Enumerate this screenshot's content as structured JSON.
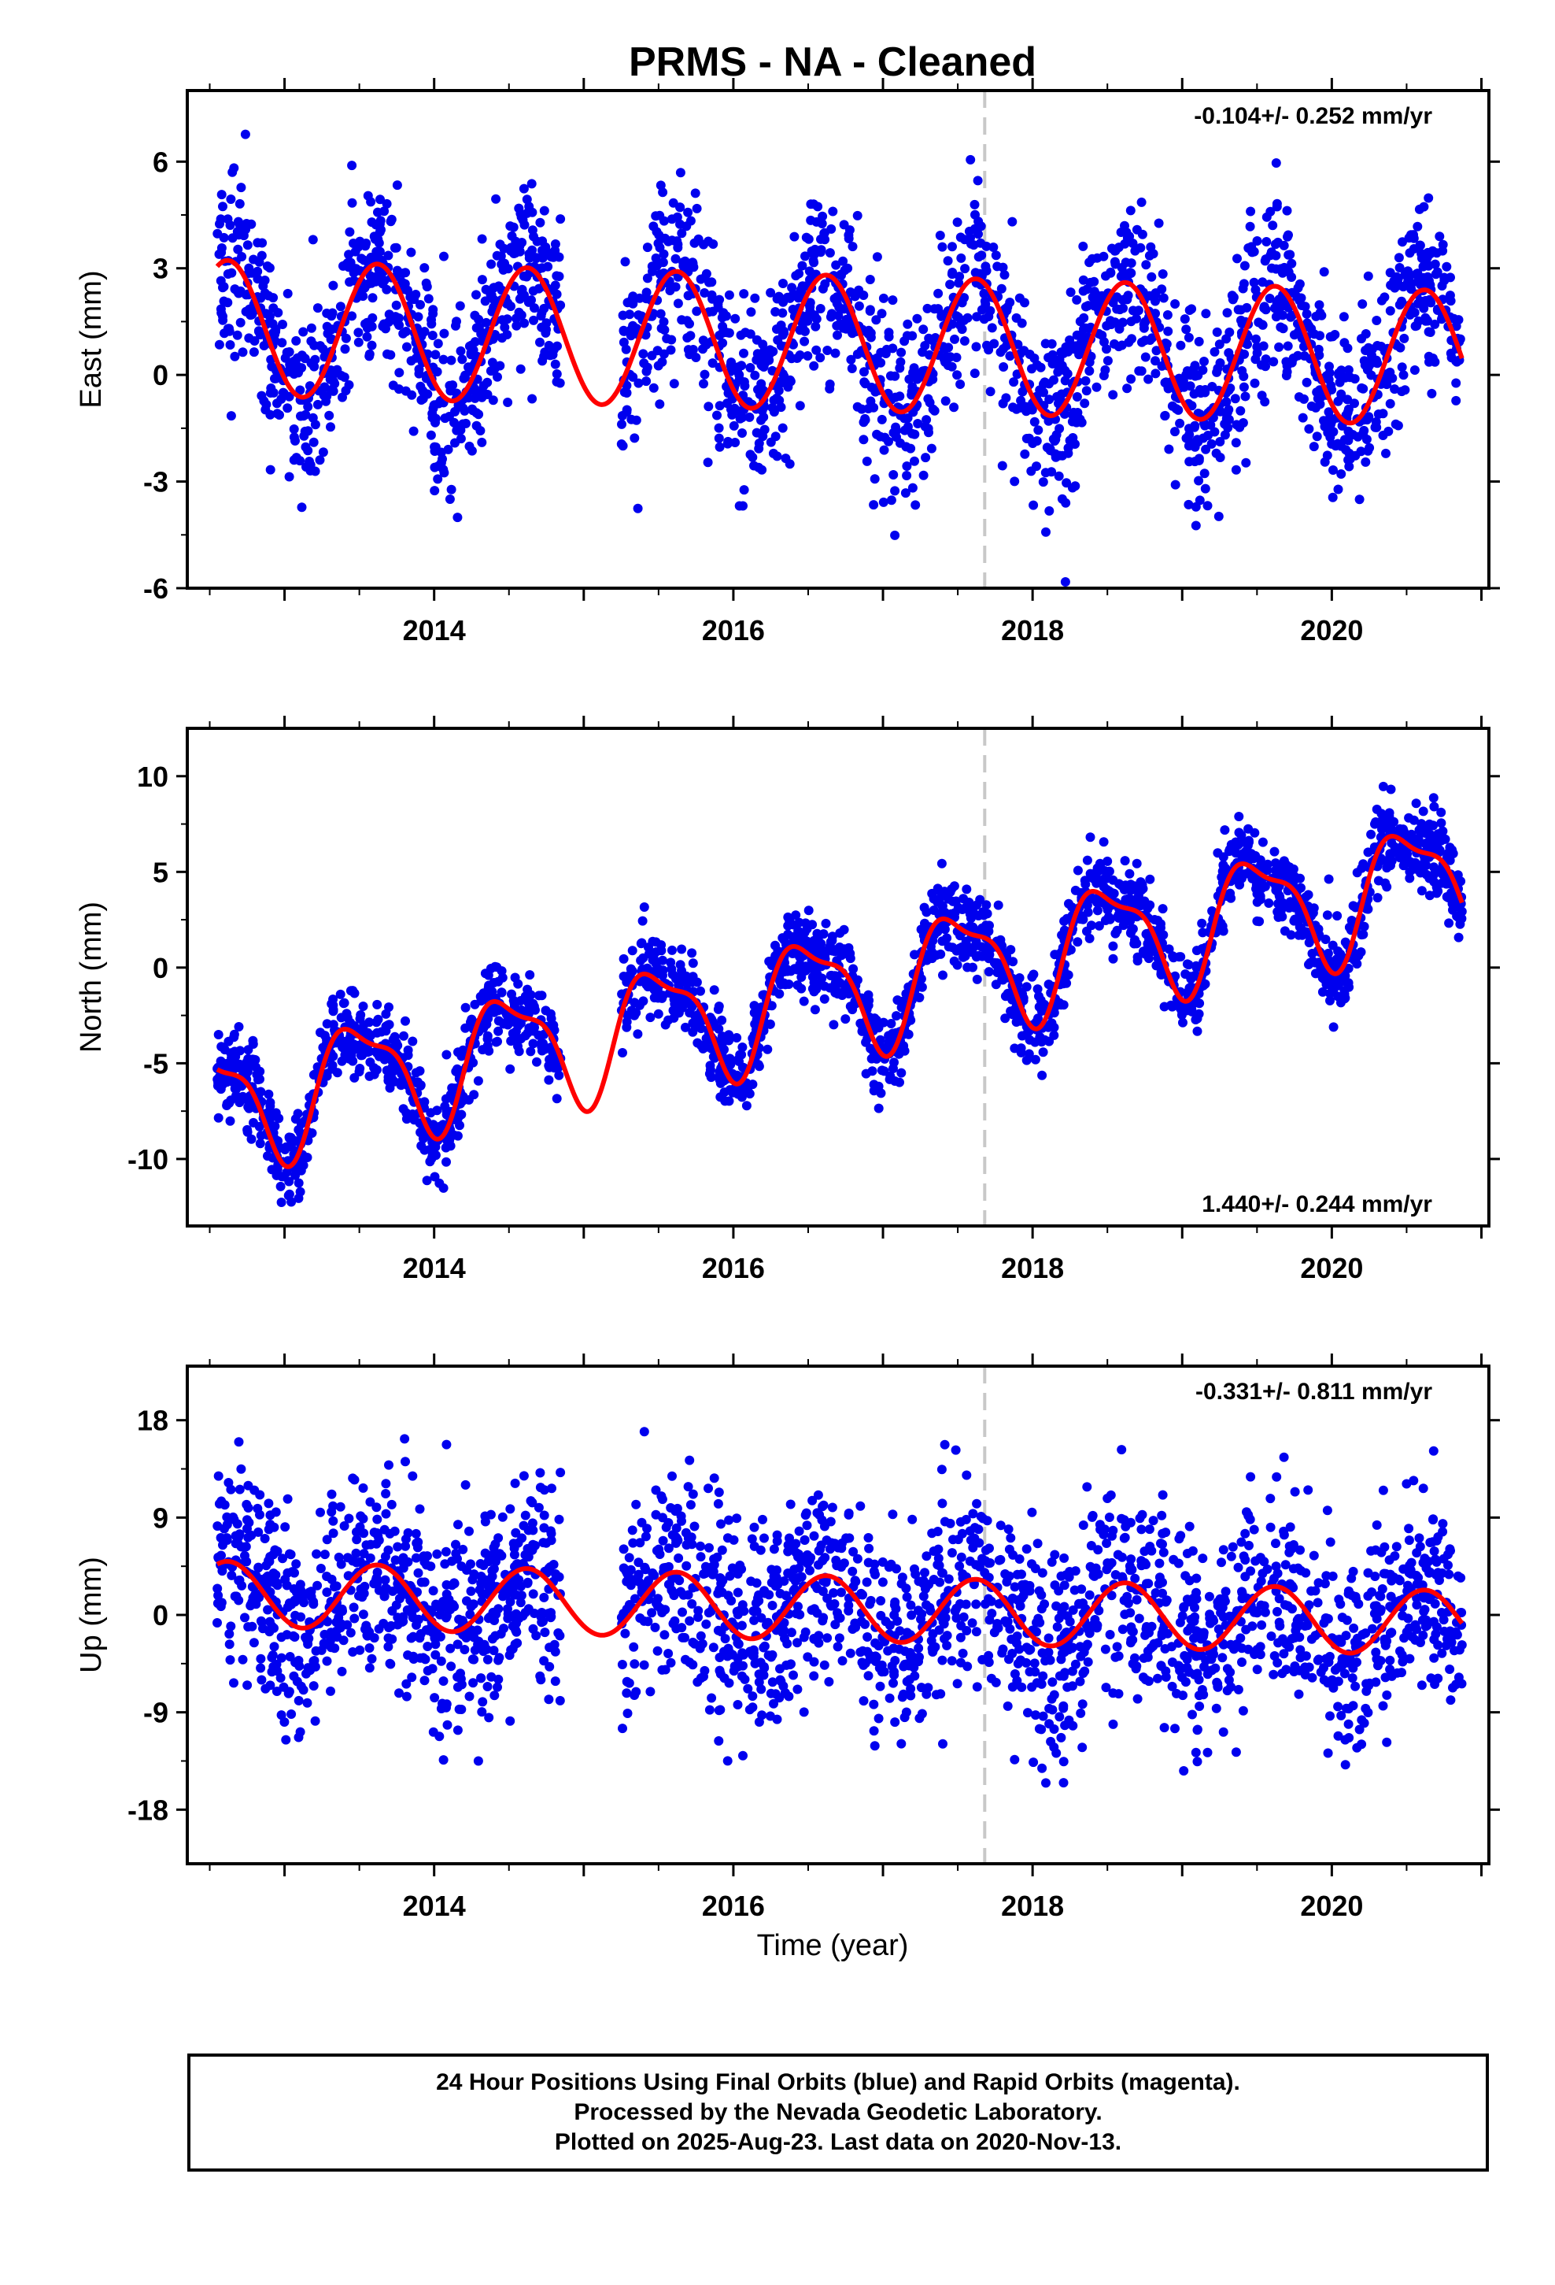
{
  "figure": {
    "title": "PRMS  - NA - Cleaned",
    "xlabel": "Time (year)",
    "footer": [
      "24 Hour Positions Using Final Orbits (blue) and Rapid Orbits (magenta).",
      "Processed by the Nevada Geodetic Laboratory.",
      "Plotted on 2025-Aug-23. Last data on 2020-Nov-13."
    ],
    "colors": {
      "data": "#0000ee",
      "model": "#ff0000",
      "event_line": "#c8c8c8",
      "frame": "#000000"
    }
  },
  "chart_data": [
    {
      "type": "scatter",
      "component": "East",
      "ylabel": "East (mm)",
      "rate_label": "-0.104+/- 0.252 mm/yr",
      "rate_position": "top-right",
      "xlim": [
        2012.35,
        2021.05
      ],
      "ylim": [
        -6,
        8
      ],
      "x_ticks": [
        2014,
        2016,
        2018,
        2020
      ],
      "y_ticks": [
        -6,
        -3,
        0,
        3,
        6
      ],
      "event_line_x": 2017.68,
      "data_span": [
        2012.55,
        2020.87
      ],
      "data_gap": [
        2014.85,
        2015.25
      ],
      "model": {
        "trend_mm_per_yr": -0.104,
        "offset_mm": 0.9,
        "seasonal": [
          {
            "period_yr": 1.0,
            "amplitude_mm": 1.9,
            "peak_year_fraction": 0.62
          }
        ]
      },
      "scatter_sd_mm": 1.25,
      "points_approx": 2450
    },
    {
      "type": "scatter",
      "component": "North",
      "ylabel": "North (mm)",
      "rate_label": "1.440+/- 0.244 mm/yr",
      "rate_position": "bottom-right",
      "xlim": [
        2012.35,
        2021.05
      ],
      "ylim": [
        -13.5,
        12.5
      ],
      "x_ticks": [
        2014,
        2016,
        2018,
        2020
      ],
      "y_ticks": [
        -10,
        -5,
        0,
        5,
        10
      ],
      "event_line_x": 2017.68,
      "data_span": [
        2012.55,
        2020.87
      ],
      "data_gap": [
        2014.85,
        2015.25
      ],
      "model": {
        "trend_mm_per_yr": 1.44,
        "offset_mm": -1.2,
        "seasonal": [
          {
            "period_yr": 1.0,
            "amplitude_mm": 3.0,
            "peak_year_fraction": 0.5
          },
          {
            "period_yr": 0.5,
            "amplitude_mm": 1.0,
            "peak_year_fraction": 0.3
          }
        ]
      },
      "scatter_sd_mm": 1.1,
      "points_approx": 2450
    },
    {
      "type": "scatter",
      "component": "Up",
      "ylabel": "Up (mm)",
      "rate_label": "-0.331+/- 0.811 mm/yr",
      "rate_position": "top-right",
      "xlim": [
        2012.35,
        2021.05
      ],
      "ylim": [
        -23,
        23
      ],
      "x_ticks": [
        2014,
        2016,
        2018,
        2020
      ],
      "y_ticks": [
        -18,
        -9,
        0,
        9,
        18
      ],
      "event_line_x": 2017.68,
      "data_span": [
        2012.55,
        2020.87
      ],
      "data_gap": [
        2014.85,
        2015.25
      ],
      "model": {
        "trend_mm_per_yr": -0.331,
        "offset_mm": 0.6,
        "seasonal": [
          {
            "period_yr": 1.0,
            "amplitude_mm": 3.0,
            "peak_year_fraction": 0.62
          }
        ]
      },
      "scatter_sd_mm": 4.8,
      "points_approx": 2450
    }
  ]
}
